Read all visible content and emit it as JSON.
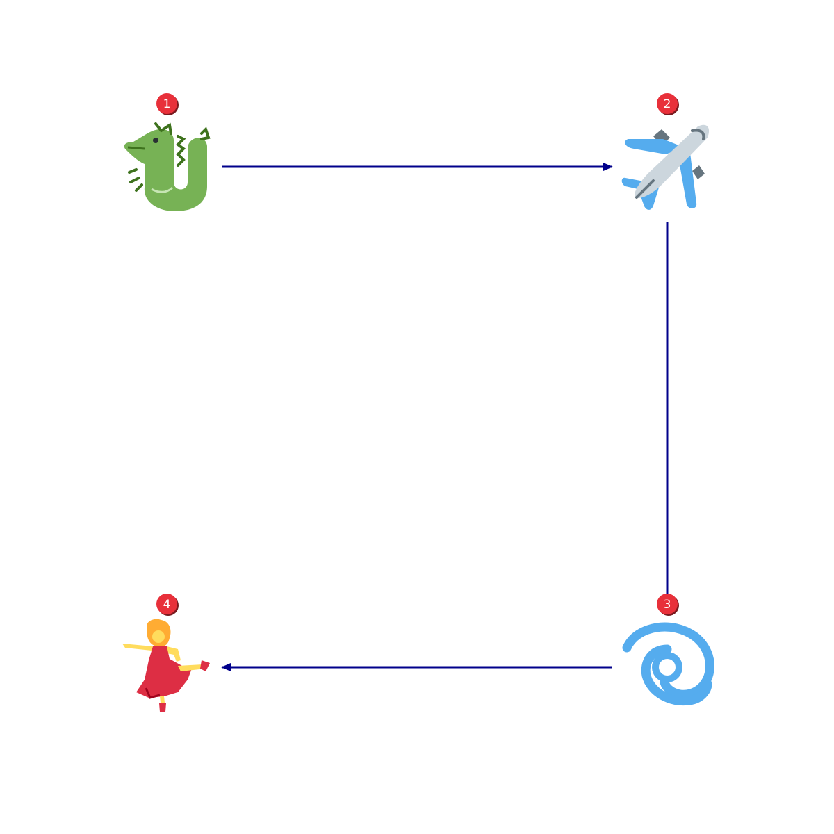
{
  "diagram": {
    "colors": {
      "arrow": "#00008b",
      "badge_fill": "#e8303a",
      "badge_shadow": "#7a1a1f"
    },
    "nodes": [
      {
        "id": "dragon",
        "number": "1",
        "icon": "dragon-icon"
      },
      {
        "id": "airplane",
        "number": "2",
        "icon": "airplane-icon"
      },
      {
        "id": "cyclone",
        "number": "3",
        "icon": "cyclone-icon"
      },
      {
        "id": "dancer",
        "number": "4",
        "icon": "dancer-icon"
      }
    ],
    "edges": [
      {
        "from": "dragon",
        "to": "airplane",
        "arrowhead": true
      },
      {
        "from": "airplane",
        "to": "cyclone",
        "arrowhead": false
      },
      {
        "from": "cyclone",
        "to": "dancer",
        "arrowhead": true
      }
    ]
  }
}
